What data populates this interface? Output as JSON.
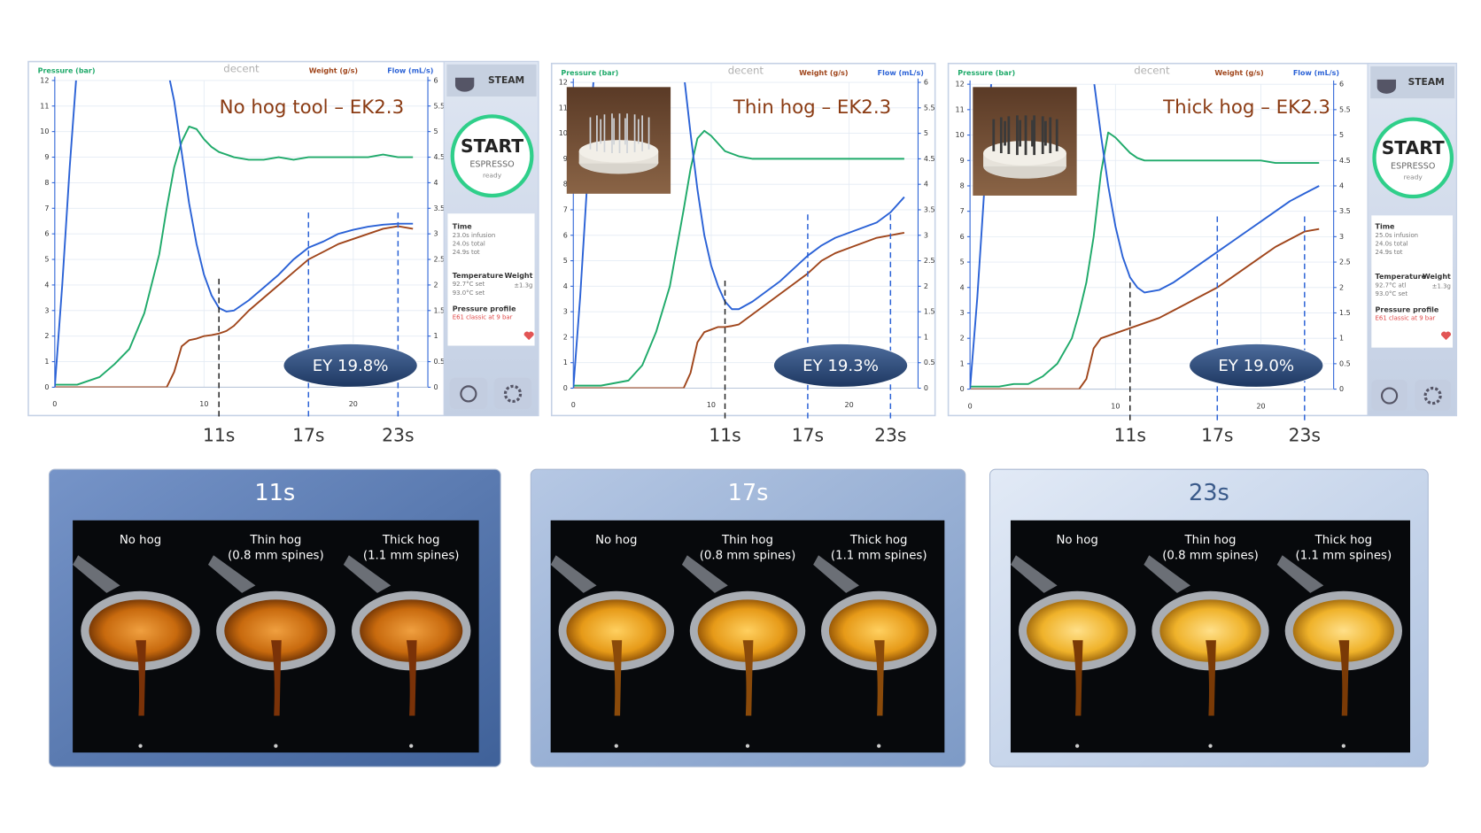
{
  "chart_data": [
    {
      "type": "line",
      "title": "No hog tool – EK2.3",
      "watermark": "decent",
      "annotation": "EY 19.8%",
      "x": [
        0,
        0.5,
        1,
        1.5,
        2,
        3,
        4,
        5,
        6,
        7,
        7.5,
        8,
        8.5,
        9,
        9.5,
        10,
        10.5,
        11,
        11.5,
        12,
        13,
        14,
        15,
        16,
        17,
        18,
        19,
        20,
        21,
        22,
        23,
        24
      ],
      "xlim": [
        0,
        25
      ],
      "xticks": [
        0,
        10,
        20
      ],
      "ylim": [
        0,
        12
      ],
      "yticks": [
        0,
        1,
        2,
        3,
        4,
        5,
        6,
        7,
        8,
        9,
        10,
        11,
        12
      ],
      "y2lim": [
        0,
        6
      ],
      "y2ticks": [
        0,
        0.5,
        1,
        1.5,
        2,
        2.5,
        3,
        3.5,
        4,
        4.5,
        5,
        5.5,
        6
      ],
      "grid": true,
      "series": [
        {
          "name": "Pressure (bar)",
          "color": "#1faa6a",
          "values": [
            0.1,
            0.1,
            0.1,
            0.1,
            0.2,
            0.4,
            0.9,
            1.5,
            2.9,
            5.2,
            7.0,
            8.6,
            9.6,
            10.2,
            10.1,
            9.7,
            9.4,
            9.2,
            9.1,
            9.0,
            8.9,
            8.9,
            9.0,
            8.9,
            9.0,
            9.0,
            9.0,
            9.0,
            9.0,
            9.1,
            9.0,
            9.0
          ]
        },
        {
          "name": "Weight (g/s)",
          "color": "#a0461c",
          "axis": "y2",
          "values": [
            0,
            0,
            0,
            0,
            0,
            0,
            0,
            0,
            0,
            0,
            0,
            0.3,
            0.8,
            0.92,
            0.95,
            1.0,
            1.02,
            1.05,
            1.1,
            1.2,
            1.5,
            1.75,
            2.0,
            2.25,
            2.5,
            2.65,
            2.8,
            2.9,
            3.0,
            3.1,
            3.15,
            3.1
          ]
        },
        {
          "name": "Flow (mL/s)",
          "color": "#2b62d6",
          "axis": "y2",
          "values": [
            0,
            2.0,
            4.3,
            6.3,
            null,
            null,
            null,
            null,
            null,
            null,
            6.3,
            5.6,
            4.6,
            3.6,
            2.8,
            2.2,
            1.8,
            1.55,
            1.48,
            1.5,
            1.7,
            1.95,
            2.2,
            2.5,
            2.73,
            2.85,
            3.0,
            3.08,
            3.14,
            3.18,
            3.2,
            3.2
          ]
        }
      ],
      "markers": [
        {
          "x": 11,
          "label": "11s",
          "color": "#222222"
        },
        {
          "x": 17,
          "label": "17s",
          "color": "#2b62d6"
        },
        {
          "x": 23,
          "label": "23s",
          "color": "#2b62d6"
        }
      ]
    },
    {
      "type": "line",
      "title": "Thin hog – EK2.3",
      "watermark": "decent",
      "annotation": "EY 19.3%",
      "x": [
        0,
        0.5,
        1,
        1.5,
        2,
        3,
        4,
        5,
        6,
        7,
        7.5,
        8,
        8.5,
        9,
        9.5,
        10,
        10.5,
        11,
        11.5,
        12,
        13,
        14,
        15,
        16,
        17,
        18,
        19,
        20,
        21,
        22,
        23,
        24
      ],
      "xlim": [
        0,
        25
      ],
      "xticks": [
        0,
        10,
        20
      ],
      "ylim": [
        0,
        12
      ],
      "yticks": [
        0,
        1,
        2,
        3,
        4,
        5,
        6,
        7,
        8,
        9,
        10,
        11,
        12
      ],
      "y2lim": [
        0,
        6
      ],
      "y2ticks": [
        0,
        0.5,
        1,
        1.5,
        2,
        2.5,
        3,
        3.5,
        4,
        4.5,
        5,
        5.5,
        6
      ],
      "grid": true,
      "series": [
        {
          "name": "Pressure (bar)",
          "color": "#1faa6a",
          "values": [
            0.1,
            0.1,
            0.1,
            0.1,
            0.1,
            0.2,
            0.3,
            0.9,
            2.2,
            4.0,
            5.5,
            7.0,
            8.6,
            9.8,
            10.1,
            9.9,
            9.6,
            9.3,
            9.2,
            9.1,
            9.0,
            9.0,
            9.0,
            9.0,
            9.0,
            9.0,
            9.0,
            9.0,
            9.0,
            9.0,
            9.0,
            9.0
          ]
        },
        {
          "name": "Weight (g/s)",
          "color": "#a0461c",
          "axis": "y2",
          "values": [
            0,
            0,
            0,
            0,
            0,
            0,
            0,
            0,
            0,
            0,
            0,
            0,
            0.3,
            0.9,
            1.1,
            1.15,
            1.2,
            1.2,
            1.22,
            1.25,
            1.45,
            1.65,
            1.85,
            2.05,
            2.25,
            2.5,
            2.65,
            2.75,
            2.85,
            2.95,
            3.0,
            3.05
          ]
        },
        {
          "name": "Flow (mL/s)",
          "color": "#2b62d6",
          "axis": "y2",
          "values": [
            0,
            1.8,
            4.0,
            6.2,
            null,
            null,
            null,
            null,
            null,
            null,
            null,
            6.2,
            5.0,
            3.9,
            3.0,
            2.4,
            2.0,
            1.7,
            1.55,
            1.55,
            1.7,
            1.9,
            2.1,
            2.35,
            2.6,
            2.8,
            2.95,
            3.05,
            3.15,
            3.25,
            3.45,
            3.75
          ]
        }
      ],
      "markers": [
        {
          "x": 11,
          "label": "11s",
          "color": "#222222"
        },
        {
          "x": 17,
          "label": "17s",
          "color": "#2b62d6"
        },
        {
          "x": 23,
          "label": "23s",
          "color": "#2b62d6"
        }
      ]
    },
    {
      "type": "line",
      "title": "Thick hog – EK2.3",
      "watermark": "decent",
      "annotation": "EY 19.0%",
      "x": [
        0,
        0.5,
        1,
        1.5,
        2,
        3,
        4,
        5,
        6,
        7,
        7.5,
        8,
        8.5,
        9,
        9.5,
        10,
        10.5,
        11,
        11.5,
        12,
        13,
        14,
        15,
        16,
        17,
        18,
        19,
        20,
        21,
        22,
        23,
        24
      ],
      "xlim": [
        0,
        25
      ],
      "xticks": [
        0,
        10,
        20
      ],
      "ylim": [
        0,
        12
      ],
      "yticks": [
        0,
        1,
        2,
        3,
        4,
        5,
        6,
        7,
        8,
        9,
        10,
        11,
        12
      ],
      "y2lim": [
        0,
        6
      ],
      "y2ticks": [
        0,
        0.5,
        1,
        1.5,
        2,
        2.5,
        3,
        3.5,
        4,
        4.5,
        5,
        5.5,
        6
      ],
      "grid": true,
      "series": [
        {
          "name": "Pressure (bar)",
          "color": "#1faa6a",
          "values": [
            0.1,
            0.1,
            0.1,
            0.1,
            0.1,
            0.2,
            0.2,
            0.5,
            1.0,
            2.0,
            3.0,
            4.2,
            6.0,
            8.5,
            10.1,
            9.9,
            9.6,
            9.3,
            9.1,
            9.0,
            9.0,
            9.0,
            9.0,
            9.0,
            9.0,
            9.0,
            9.0,
            9.0,
            8.9,
            8.9,
            8.9,
            8.9
          ]
        },
        {
          "name": "Weight (g/s)",
          "color": "#a0461c",
          "axis": "y2",
          "values": [
            0,
            0,
            0,
            0,
            0,
            0,
            0,
            0,
            0,
            0,
            0,
            0.2,
            0.8,
            1.0,
            1.05,
            1.1,
            1.15,
            1.2,
            1.25,
            1.3,
            1.4,
            1.55,
            1.7,
            1.85,
            2.0,
            2.2,
            2.4,
            2.6,
            2.8,
            2.95,
            3.1,
            3.15
          ]
        },
        {
          "name": "Flow (mL/s)",
          "color": "#2b62d6",
          "axis": "y2",
          "values": [
            0,
            1.8,
            4.0,
            6.2,
            null,
            null,
            null,
            null,
            null,
            null,
            null,
            null,
            6.1,
            5.0,
            4.0,
            3.2,
            2.6,
            2.2,
            2.0,
            1.9,
            1.95,
            2.1,
            2.3,
            2.5,
            2.7,
            2.9,
            3.1,
            3.3,
            3.5,
            3.7,
            3.85,
            4.0
          ]
        }
      ],
      "markers": [
        {
          "x": 11,
          "label": "11s",
          "color": "#222222"
        },
        {
          "x": 17,
          "label": "17s",
          "color": "#2b62d6"
        },
        {
          "x": 23,
          "label": "23s",
          "color": "#2b62d6"
        }
      ]
    }
  ],
  "side_panels": [
    {
      "steam": "STEAM",
      "start": "START",
      "mode": "ESPRESSO",
      "status": "ready",
      "time_title": "Time",
      "time_lines": [
        "23.0s infusion",
        "24.0s total",
        "24.9s tot"
      ],
      "temp_title": "Temperature",
      "temp_lines": [
        "92.7°C set",
        "93.0°C set"
      ],
      "weight_title": "Weight",
      "weight_value": "±1.3g",
      "profile_title": "Pressure profile",
      "profile_value": "E61 classic at 9 bar"
    },
    {
      "steam": "STEAM",
      "start": "START",
      "mode": "ESPRESSO",
      "status": "ready",
      "time_title": "Time",
      "time_lines": [
        "25.0s infusion",
        "24.0s total",
        "24.9s tot"
      ],
      "temp_title": "Temperature",
      "temp_lines": [
        "92.7°C atl",
        "93.0°C set"
      ],
      "weight_title": "Weight",
      "weight_value": "±1.3g",
      "profile_title": "Pressure profile",
      "profile_value": "E61 classic at 9 bar"
    }
  ],
  "photo_panels": [
    {
      "title": "11s",
      "captions": [
        {
          "label": "No hog"
        },
        {
          "label": "Thin hog",
          "sub": "(0.8 mm spines)"
        },
        {
          "label": "Thick hog",
          "sub": "(1.1 mm spines)"
        }
      ]
    },
    {
      "title": "17s",
      "captions": [
        {
          "label": "No hog"
        },
        {
          "label": "Thin hog",
          "sub": "(0.8 mm spines)"
        },
        {
          "label": "Thick hog",
          "sub": "(1.1 mm spines)"
        }
      ]
    },
    {
      "title": "23s",
      "captions": [
        {
          "label": "No hog"
        },
        {
          "label": "Thin hog",
          "sub": "(0.8 mm spines)"
        },
        {
          "label": "Thick hog",
          "sub": "(1.1 mm spines)"
        }
      ]
    }
  ]
}
